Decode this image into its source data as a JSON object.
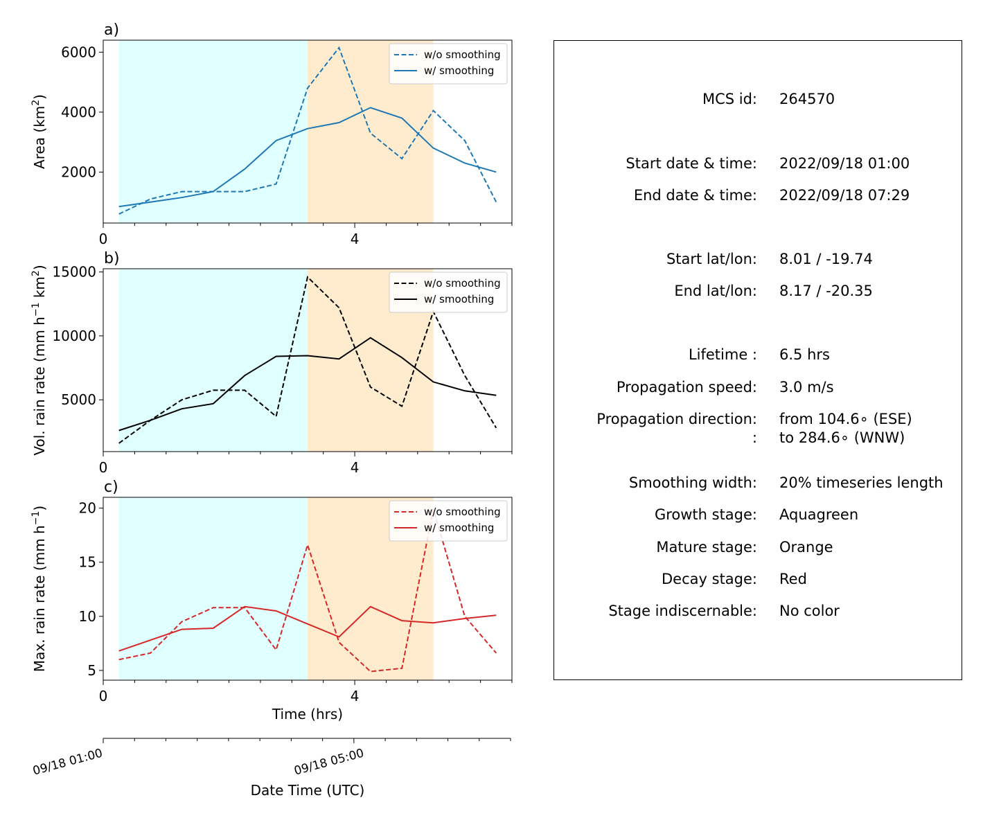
{
  "chart_data": [
    {
      "type": "line",
      "panel_label": "a)",
      "ylabel": "Area  (km",
      "ylabel_sup": "2",
      "ylabel_end": ")",
      "xlabel": "",
      "xlim": [
        0,
        6.5
      ],
      "ylim": [
        300,
        6400
      ],
      "yticks": [
        "2000",
        "4000",
        "6000"
      ],
      "xticks": [
        "0",
        "4"
      ],
      "color": "#1f77b4",
      "x": [
        0.25,
        0.75,
        1.25,
        1.75,
        2.25,
        2.75,
        3.25,
        3.75,
        4.25,
        4.75,
        5.25,
        5.75,
        6.25
      ],
      "series": [
        {
          "name": "w/o smoothing",
          "style": "dashed",
          "values": [
            600,
            1100,
            1350,
            1350,
            1350,
            1600,
            4800,
            6150,
            3300,
            2450,
            4050,
            3050,
            1000
          ]
        },
        {
          "name": "w/ smoothing",
          "style": "solid",
          "values": [
            850,
            1000,
            1150,
            1350,
            2100,
            3050,
            3450,
            3650,
            4150,
            3800,
            2800,
            2300,
            2000
          ]
        }
      ],
      "stages": [
        {
          "stage": "growth",
          "start": 0.25,
          "end": 3.25,
          "color": "#e0ffff"
        },
        {
          "stage": "mature",
          "start": 3.25,
          "end": 5.25,
          "color": "#ffebcd"
        }
      ],
      "legend": "top-right"
    },
    {
      "type": "line",
      "panel_label": "b)",
      "ylabel": "Vol. rain rate (mm h",
      "ylabel_sup": "−1",
      "ylabel_mid": " km",
      "ylabel_sup2": "2",
      "ylabel_end": ")",
      "xlabel": "",
      "xlim": [
        0,
        6.5
      ],
      "ylim": [
        950,
        15250
      ],
      "yticks": [
        "5000",
        "10000",
        "15000"
      ],
      "xticks": [
        "0",
        "4"
      ],
      "color": "#000000",
      "x": [
        0.25,
        0.75,
        1.25,
        1.75,
        2.25,
        2.75,
        3.25,
        3.75,
        4.25,
        4.75,
        5.25,
        5.75,
        6.25
      ],
      "series": [
        {
          "name": "w/o smoothing",
          "style": "dashed",
          "values": [
            1600,
            3400,
            5000,
            5750,
            5750,
            3700,
            14600,
            12200,
            6000,
            4500,
            11900,
            6900,
            2800
          ]
        },
        {
          "name": "w/ smoothing",
          "style": "solid",
          "values": [
            2600,
            3400,
            4300,
            4700,
            6900,
            8400,
            8450,
            8200,
            9850,
            8300,
            6400,
            5700,
            5350
          ]
        }
      ],
      "stages": [
        {
          "stage": "growth",
          "start": 0.25,
          "end": 3.25,
          "color": "#e0ffff"
        },
        {
          "stage": "mature",
          "start": 3.25,
          "end": 5.25,
          "color": "#ffebcd"
        }
      ],
      "legend": "top-right"
    },
    {
      "type": "line",
      "panel_label": "c)",
      "ylabel": "Max. rain rate  (mm h",
      "ylabel_sup": "−1",
      "ylabel_end": ")",
      "xlabel": "Time (hrs)",
      "xlim": [
        0,
        6.5
      ],
      "ylim": [
        4.1,
        21
      ],
      "yticks": [
        "5",
        "10",
        "15",
        "20"
      ],
      "xticks": [
        "0",
        "4"
      ],
      "color": "#d62728",
      "x": [
        0.25,
        0.75,
        1.25,
        1.75,
        2.25,
        2.75,
        3.25,
        3.75,
        4.25,
        4.75,
        5.25,
        5.75,
        6.25
      ],
      "series": [
        {
          "name": "w/o smoothing",
          "style": "dashed",
          "values": [
            6.0,
            6.6,
            9.5,
            10.8,
            10.8,
            6.9,
            16.6,
            7.6,
            4.9,
            5.2,
            19.9,
            10.0,
            6.6
          ]
        },
        {
          "name": "w/ smoothing",
          "style": "solid",
          "values": [
            6.8,
            7.8,
            8.8,
            8.9,
            10.9,
            10.5,
            9.3,
            8.1,
            10.9,
            9.6,
            9.4,
            9.8,
            10.1
          ]
        }
      ],
      "stages": [
        {
          "stage": "growth",
          "start": 0.25,
          "end": 3.25,
          "color": "#e0ffff"
        },
        {
          "stage": "mature",
          "start": 3.25,
          "end": 5.25,
          "color": "#ffebcd"
        }
      ],
      "legend": "top-right"
    }
  ],
  "date_axis": {
    "label": "Date Time (UTC)",
    "ticks": [
      {
        "label": "09/18 01:00",
        "x": 0.0
      },
      {
        "label": "09/18 05:00",
        "x": 4.17
      }
    ]
  },
  "info": {
    "rows": [
      {
        "label": "MCS id:",
        "value": "264570"
      },
      {
        "label": "Start date & time:",
        "value": "2022/09/18 01:00"
      },
      {
        "label": "End date & time:",
        "value": "2022/09/18 07:29"
      },
      {
        "label": "Start lat/lon:",
        "value": "8.01 / -19.74"
      },
      {
        "label": "End lat/lon:",
        "value": "8.17 / -20.35"
      },
      {
        "label": "Lifetime :",
        "value": "6.5 hrs"
      },
      {
        "label": "Propagation speed:",
        "value": "3.0 m/s"
      },
      {
        "label": "Propagation direction:",
        "value": "from 104.6∘ (ESE)"
      },
      {
        "label": ":",
        "value": "to   284.6∘ (WNW)"
      },
      {
        "label": "Smoothing width:",
        "value": "20% timeseries length"
      },
      {
        "label": "Growth stage:",
        "value": "Aquagreen"
      },
      {
        "label": "Mature stage:",
        "value": "Orange"
      },
      {
        "label": "Decay stage:",
        "value": "Red"
      },
      {
        "label": "Stage indiscernable:",
        "value": "No color"
      }
    ]
  }
}
